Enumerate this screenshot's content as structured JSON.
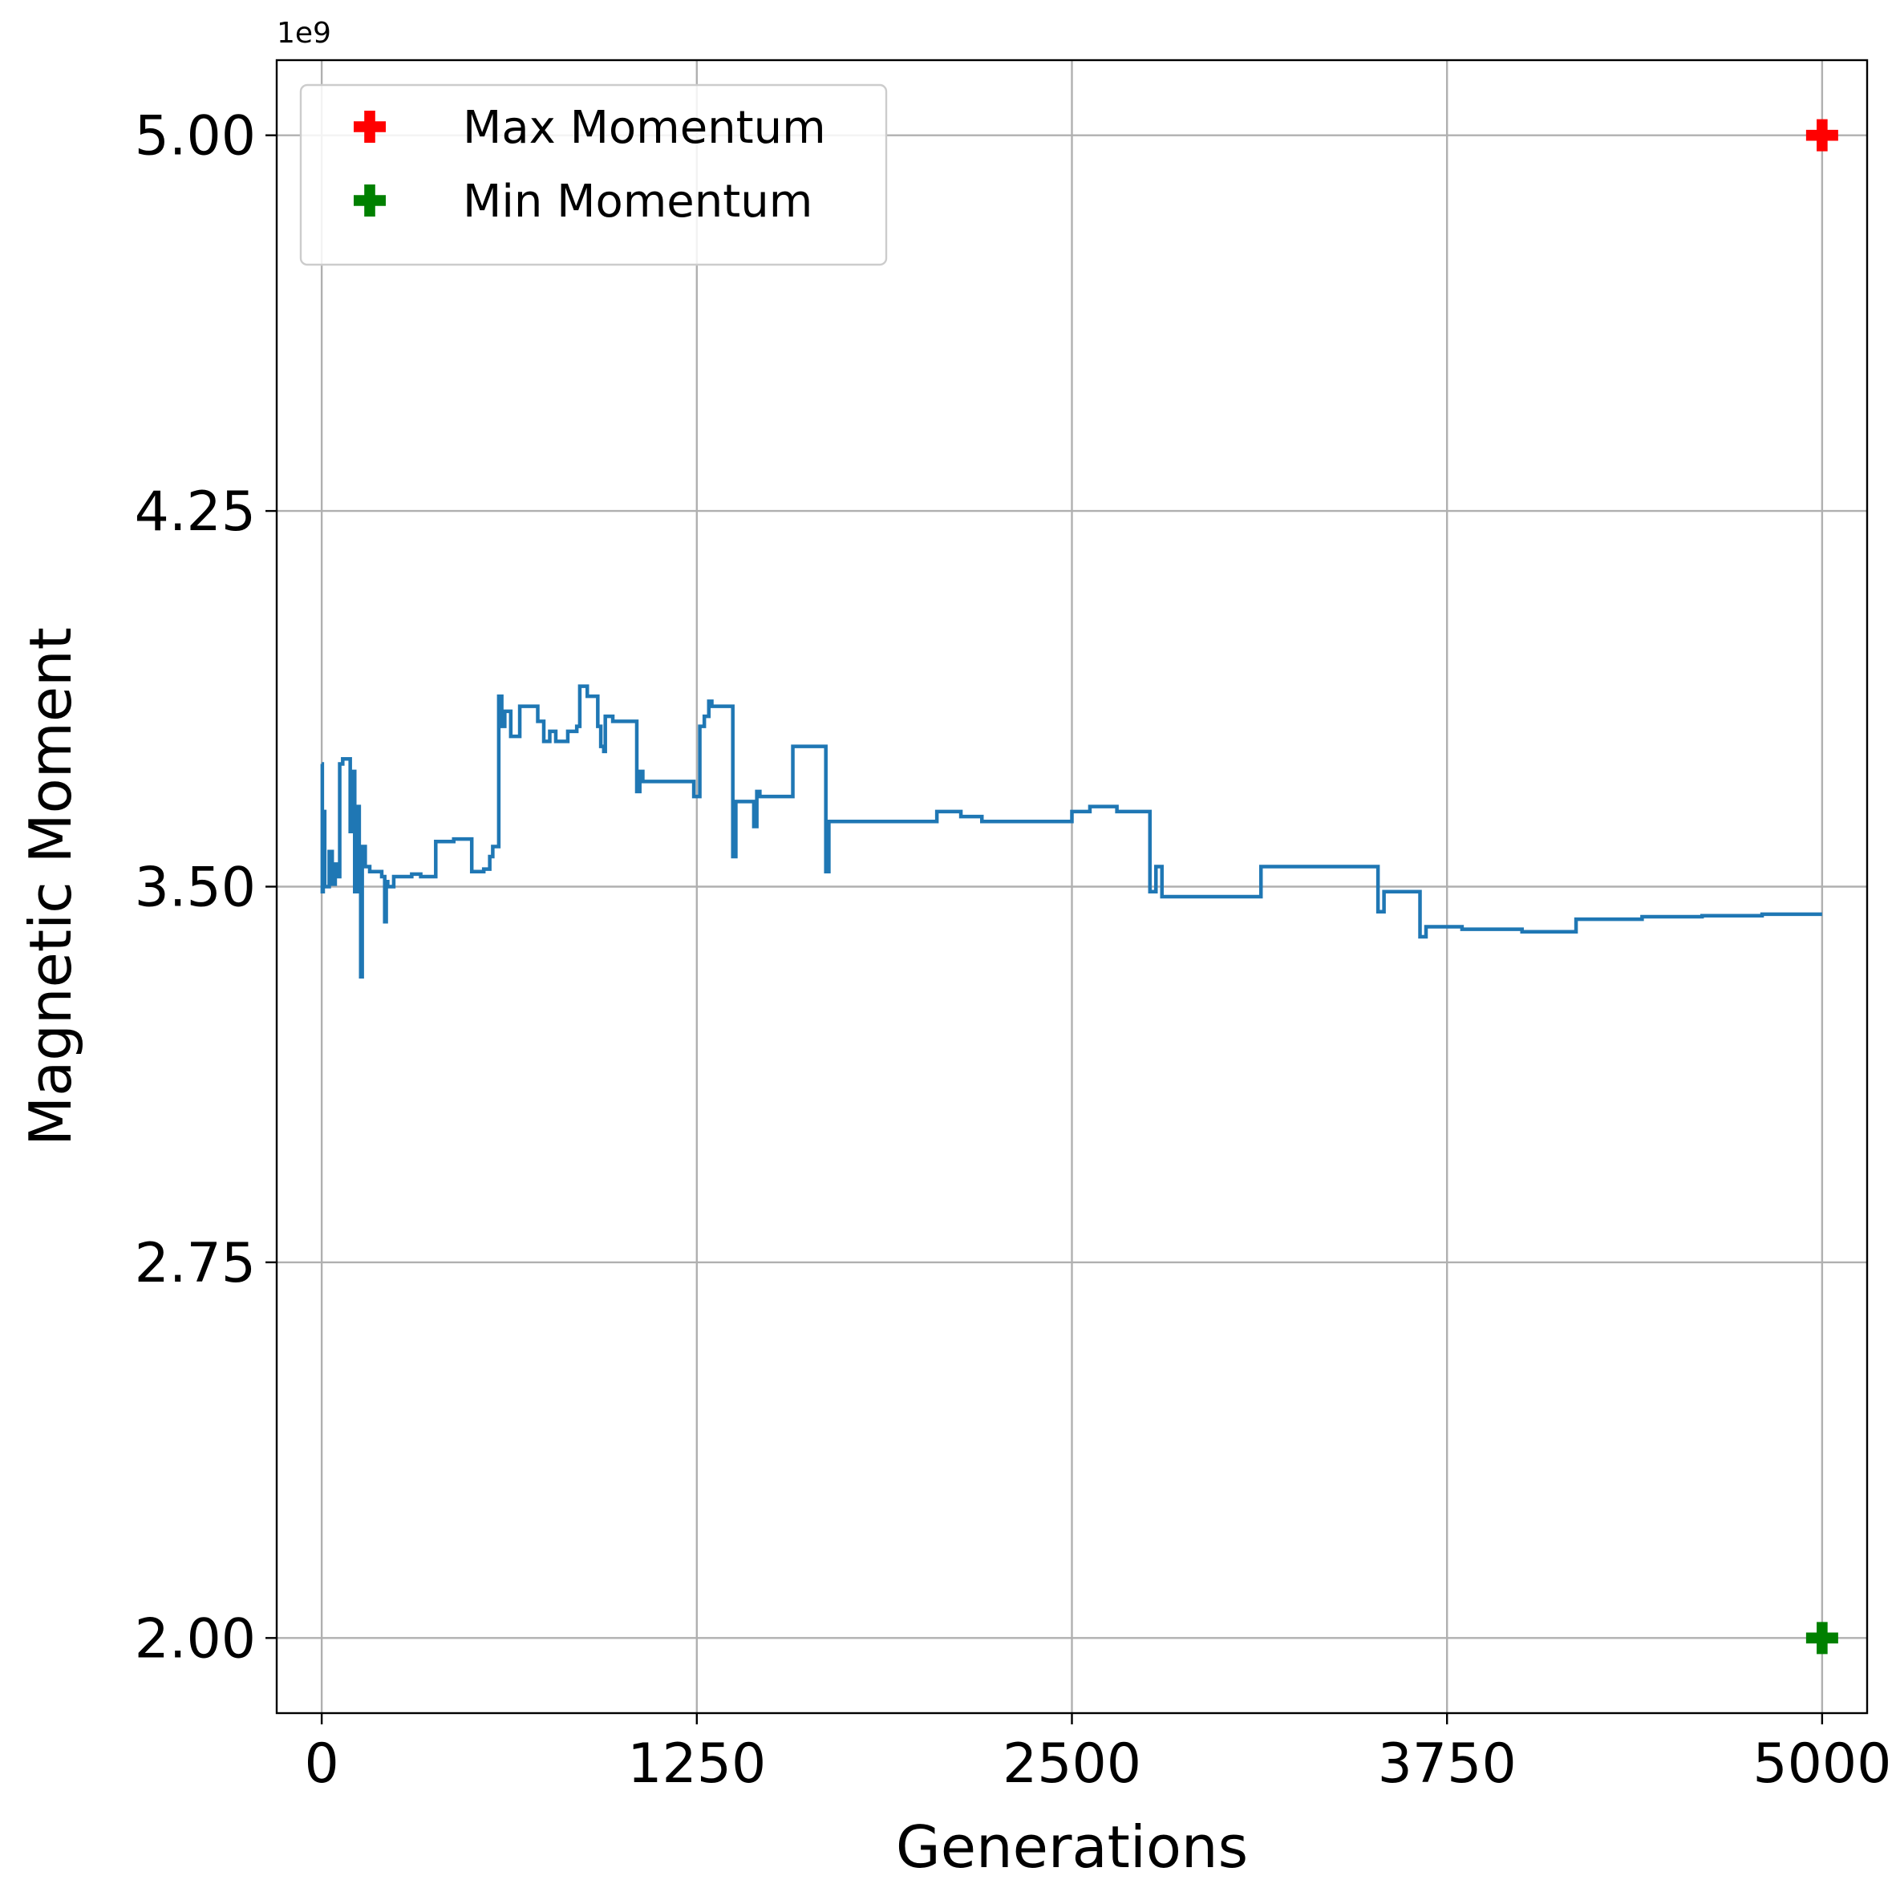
{
  "chart_data": {
    "type": "line",
    "title": "",
    "xlabel": "Generations",
    "ylabel": "Magnetic Moment",
    "y_offset_label": "1e9",
    "xlim": [
      -150,
      5150
    ],
    "ylim": [
      1.85,
      5.15
    ],
    "x_ticks": [
      0,
      1250,
      2500,
      3750,
      5000
    ],
    "x_tick_labels": [
      "0",
      "1250",
      "2500",
      "3750",
      "5000"
    ],
    "y_ticks": [
      2.0,
      2.75,
      3.5,
      4.25,
      5.0
    ],
    "y_tick_labels": [
      "2.00",
      "2.75",
      "3.50",
      "4.25",
      "5.00"
    ],
    "grid": true,
    "legend_position": "top-left",
    "series": [
      {
        "color": "#1f77b4",
        "style": "step",
        "points": [
          [
            0,
            3.745
          ],
          [
            2,
            3.49
          ],
          [
            5,
            3.65
          ],
          [
            10,
            3.5
          ],
          [
            25,
            3.57
          ],
          [
            35,
            3.505
          ],
          [
            45,
            3.545
          ],
          [
            50,
            3.52
          ],
          [
            60,
            3.745
          ],
          [
            70,
            3.755
          ],
          [
            80,
            3.755
          ],
          [
            95,
            3.61
          ],
          [
            100,
            3.73
          ],
          [
            110,
            3.49
          ],
          [
            118,
            3.66
          ],
          [
            125,
            3.53
          ],
          [
            130,
            3.32
          ],
          [
            135,
            3.58
          ],
          [
            145,
            3.54
          ],
          [
            160,
            3.53
          ],
          [
            200,
            3.52
          ],
          [
            210,
            3.43
          ],
          [
            215,
            3.51
          ],
          [
            220,
            3.5
          ],
          [
            240,
            3.52
          ],
          [
            300,
            3.525
          ],
          [
            330,
            3.52
          ],
          [
            380,
            3.59
          ],
          [
            440,
            3.595
          ],
          [
            500,
            3.53
          ],
          [
            540,
            3.535
          ],
          [
            560,
            3.56
          ],
          [
            570,
            3.58
          ],
          [
            590,
            3.88
          ],
          [
            600,
            3.82
          ],
          [
            610,
            3.85
          ],
          [
            630,
            3.8
          ],
          [
            660,
            3.86
          ],
          [
            720,
            3.83
          ],
          [
            740,
            3.79
          ],
          [
            760,
            3.81
          ],
          [
            780,
            3.79
          ],
          [
            800,
            3.79
          ],
          [
            820,
            3.81
          ],
          [
            850,
            3.82
          ],
          [
            860,
            3.9
          ],
          [
            885,
            3.88
          ],
          [
            920,
            3.82
          ],
          [
            930,
            3.78
          ],
          [
            940,
            3.77
          ],
          [
            945,
            3.84
          ],
          [
            970,
            3.83
          ],
          [
            1050,
            3.69
          ],
          [
            1060,
            3.73
          ],
          [
            1070,
            3.71
          ],
          [
            1100,
            3.71
          ],
          [
            1150,
            3.71
          ],
          [
            1240,
            3.68
          ],
          [
            1260,
            3.82
          ],
          [
            1275,
            3.84
          ],
          [
            1290,
            3.87
          ],
          [
            1300,
            3.86
          ],
          [
            1340,
            3.86
          ],
          [
            1370,
            3.56
          ],
          [
            1380,
            3.67
          ],
          [
            1420,
            3.67
          ],
          [
            1440,
            3.62
          ],
          [
            1450,
            3.69
          ],
          [
            1460,
            3.68
          ],
          [
            1540,
            3.68
          ],
          [
            1570,
            3.78
          ],
          [
            1660,
            3.78
          ],
          [
            1680,
            3.53
          ],
          [
            1690,
            3.63
          ],
          [
            1850,
            3.63
          ],
          [
            2020,
            3.63
          ],
          [
            2050,
            3.65
          ],
          [
            2130,
            3.64
          ],
          [
            2200,
            3.63
          ],
          [
            2250,
            3.63
          ],
          [
            2300,
            3.63
          ],
          [
            2480,
            3.63
          ],
          [
            2500,
            3.65
          ],
          [
            2560,
            3.66
          ],
          [
            2630,
            3.66
          ],
          [
            2650,
            3.65
          ],
          [
            2700,
            3.65
          ],
          [
            2750,
            3.65
          ],
          [
            2760,
            3.49
          ],
          [
            2780,
            3.54
          ],
          [
            2800,
            3.48
          ],
          [
            3000,
            3.48
          ],
          [
            3100,
            3.48
          ],
          [
            3130,
            3.54
          ],
          [
            3500,
            3.54
          ],
          [
            3520,
            3.45
          ],
          [
            3540,
            3.49
          ],
          [
            3640,
            3.49
          ],
          [
            3660,
            3.4
          ],
          [
            3680,
            3.42
          ],
          [
            3750,
            3.42
          ],
          [
            3800,
            3.415
          ],
          [
            4000,
            3.41
          ],
          [
            4160,
            3.41
          ],
          [
            4180,
            3.435
          ],
          [
            4400,
            3.44
          ],
          [
            4600,
            3.442
          ],
          [
            4800,
            3.445
          ],
          [
            5000,
            3.445
          ]
        ]
      },
      {
        "name": "Max Momentum",
        "color": "#ff0000",
        "style": "marker",
        "points": [
          [
            5000,
            5.0
          ]
        ]
      },
      {
        "name": "Min Momentum",
        "color": "#008000",
        "style": "marker",
        "points": [
          [
            5000,
            2.0
          ]
        ]
      }
    ]
  }
}
